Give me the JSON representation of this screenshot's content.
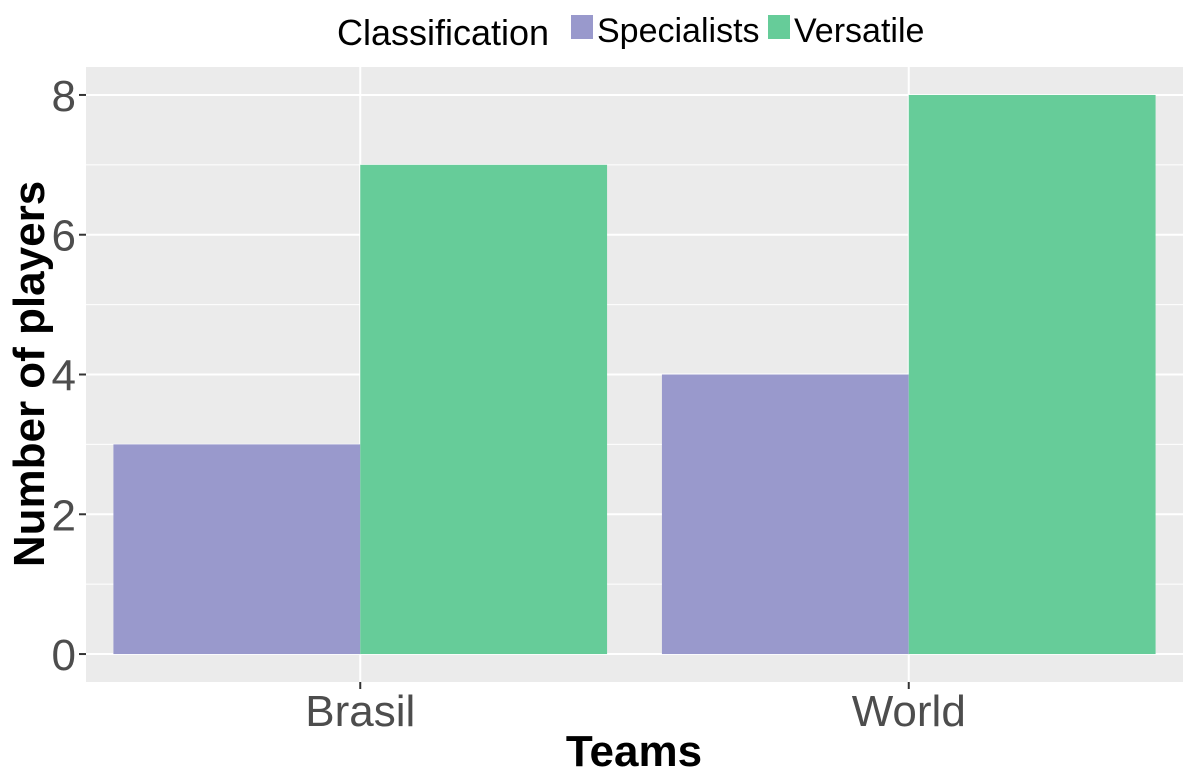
{
  "chart_data": {
    "type": "bar",
    "categories": [
      "Brasil",
      "World"
    ],
    "series": [
      {
        "name": "Specialists",
        "values": [
          3,
          4
        ],
        "color": "#9999cc"
      },
      {
        "name": "Versatile",
        "values": [
          7,
          8
        ],
        "color": "#66cc99"
      }
    ],
    "title": "",
    "xlabel": "Teams",
    "ylabel": "Number of players",
    "ylim": [
      -0.4,
      8.4
    ],
    "yticks": [
      0,
      2,
      4,
      6,
      8
    ],
    "grid": true,
    "legend": {
      "title": "Classification",
      "position": "top"
    },
    "panel_background": "#ebebeb",
    "grid_color": "#ffffff"
  }
}
